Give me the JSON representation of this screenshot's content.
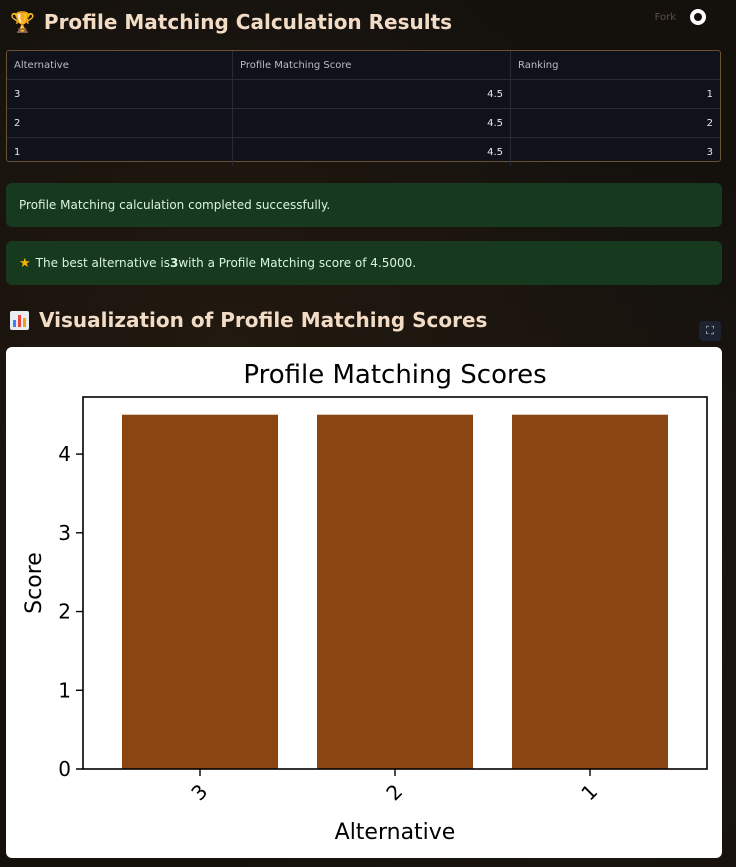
{
  "header": {
    "icon": "trophy-icon",
    "title": "Profile Matching Calculation Results",
    "fork_label": "Fork"
  },
  "table": {
    "columns": [
      "Alternative",
      "Profile Matching Score",
      "Ranking"
    ],
    "rows": [
      {
        "alternative": "3",
        "score": "4.5",
        "ranking": "1"
      },
      {
        "alternative": "2",
        "score": "4.5",
        "ranking": "2"
      },
      {
        "alternative": "1",
        "score": "4.5",
        "ranking": "3"
      }
    ]
  },
  "alerts": {
    "success": "Profile Matching calculation completed successfully.",
    "best_prefix": "The best alternative is ",
    "best_alt": "3",
    "best_suffix": " with a Profile Matching score of 4.5000."
  },
  "section": {
    "icon": "bar-chart-icon",
    "title": "Visualization of Profile Matching Scores"
  },
  "chart_data": {
    "type": "bar",
    "title": "Profile Matching Scores",
    "xlabel": "Alternative",
    "ylabel": "Score",
    "categories": [
      "3",
      "2",
      "1"
    ],
    "values": [
      4.5,
      4.5,
      4.5
    ],
    "ylim": [
      0,
      4.725
    ],
    "yticks": [
      0,
      1,
      2,
      3,
      4
    ],
    "bar_color": "#8b4513",
    "grid": false,
    "legend": "none"
  },
  "colors": {
    "background": "#14110d",
    "success_bg": "#173a1f",
    "heading": "#f3dcc6"
  }
}
